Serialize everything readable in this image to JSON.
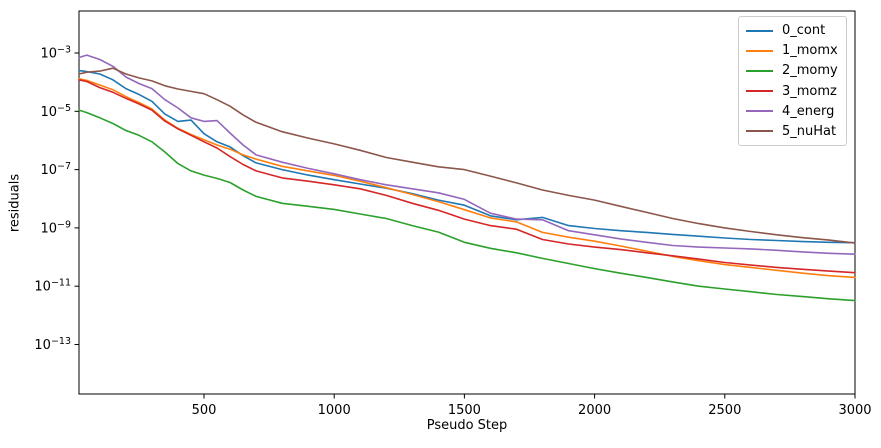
{
  "chart_data": {
    "type": "line",
    "title": "",
    "xlabel": "Pseudo Step",
    "ylabel": "residuals",
    "yscale": "log",
    "grid": false,
    "legend_position": "upper right",
    "xlim": [
      20,
      3000
    ],
    "ylim": [
      1e-15,
      0.025
    ],
    "x_ticks": [
      500,
      1000,
      1500,
      2000,
      2500,
      3000
    ],
    "y_tick_exponents": [
      -3,
      -5,
      -7,
      -9,
      -11,
      -13
    ],
    "x": [
      20,
      50,
      100,
      150,
      200,
      250,
      300,
      350,
      400,
      450,
      500,
      550,
      600,
      650,
      700,
      800,
      900,
      1000,
      1100,
      1200,
      1300,
      1400,
      1500,
      1600,
      1700,
      1800,
      1900,
      2000,
      2100,
      2200,
      2300,
      2400,
      2500,
      2600,
      2700,
      2800,
      2900,
      3000
    ],
    "series": [
      {
        "name": "0_cont",
        "color": "#1f77b4",
        "values": [
          0.00025,
          0.00023,
          0.00019,
          0.00012,
          6e-05,
          3.8e-05,
          2.2e-05,
          8e-06,
          4.5e-06,
          5e-06,
          1.7e-06,
          9e-07,
          6e-07,
          3e-07,
          1.7e-07,
          1e-07,
          6.5e-08,
          4.5e-08,
          3.2e-08,
          2.3e-08,
          1.5e-08,
          9e-09,
          6e-09,
          2.6e-09,
          1.9e-09,
          2.3e-09,
          1.2e-09,
          9.5e-10,
          8e-10,
          7e-10,
          6e-10,
          5.2e-10,
          4.5e-10,
          4e-10,
          3.7e-10,
          3.4e-10,
          3.2e-10,
          3.1e-10
        ]
      },
      {
        "name": "1_momx",
        "color": "#ff7f0e",
        "values": [
          0.00013,
          0.000115,
          8e-05,
          5.5e-05,
          3.2e-05,
          2e-05,
          1.2e-05,
          5e-06,
          2.6e-06,
          1.6e-06,
          1.05e-06,
          7e-07,
          5e-07,
          3.2e-07,
          2.3e-07,
          1.3e-07,
          9e-08,
          6.3e-08,
          4e-08,
          2.4e-08,
          1.4e-08,
          8e-09,
          4.2e-09,
          2.2e-09,
          1.6e-09,
          7e-10,
          4.8e-10,
          3.5e-10,
          2.4e-10,
          1.6e-10,
          1.05e-10,
          7.5e-11,
          5.5e-11,
          4.4e-11,
          3.5e-11,
          2.8e-11,
          2.3e-11,
          2e-11
        ]
      },
      {
        "name": "2_momy",
        "color": "#2ca02c",
        "values": [
          1.1e-05,
          9e-06,
          6e-06,
          3.8e-06,
          2.2e-06,
          1.5e-06,
          9e-07,
          4e-07,
          1.6e-07,
          9e-08,
          6.5e-08,
          5e-08,
          3.6e-08,
          2e-08,
          1.2e-08,
          7e-09,
          5.5e-09,
          4.3e-09,
          3e-09,
          2.1e-09,
          1.2e-09,
          7.2e-10,
          3.2e-10,
          2e-10,
          1.4e-10,
          9e-11,
          6e-11,
          4e-11,
          2.8e-11,
          2e-11,
          1.4e-11,
          1e-11,
          8e-12,
          6.5e-12,
          5.2e-12,
          4.4e-12,
          3.7e-12,
          3.2e-12
        ]
      },
      {
        "name": "3_momz",
        "color": "#d62728",
        "values": [
          0.00012,
          0.000105,
          6.5e-05,
          4.5e-05,
          2.8e-05,
          1.8e-05,
          1.1e-05,
          4.6e-06,
          2.5e-06,
          1.5e-06,
          9e-07,
          5.5e-07,
          2.8e-07,
          1.5e-07,
          9e-08,
          5.2e-08,
          4e-08,
          3e-08,
          2.2e-08,
          1.3e-08,
          7e-09,
          4e-09,
          2e-09,
          1.2e-09,
          9e-10,
          4e-10,
          2.8e-10,
          2.2e-10,
          1.8e-10,
          1.4e-10,
          1.1e-10,
          8.5e-11,
          6.5e-11,
          5.3e-11,
          4.4e-11,
          3.8e-11,
          3.3e-11,
          2.9e-11
        ]
      },
      {
        "name": "4_energ",
        "color": "#9467bd",
        "values": [
          0.0007,
          0.00085,
          0.0006,
          0.00035,
          0.00015,
          9e-05,
          6e-05,
          2.5e-05,
          1.3e-05,
          6e-06,
          4.5e-06,
          4.8e-06,
          1.8e-06,
          7e-07,
          3.2e-07,
          1.8e-07,
          1.1e-07,
          7.2e-08,
          4.5e-08,
          3e-08,
          2.2e-08,
          1.6e-08,
          9.5e-09,
          3.2e-09,
          2e-09,
          1.9e-09,
          8e-10,
          5.8e-10,
          4.2e-10,
          3.2e-10,
          2.5e-10,
          2.2e-10,
          2.05e-10,
          1.9e-10,
          1.7e-10,
          1.5e-10,
          1.35e-10,
          1.25e-10
        ]
      },
      {
        "name": "5_nuHat",
        "color": "#8c564b",
        "values": [
          0.00019,
          0.00022,
          0.00024,
          0.0003,
          0.00019,
          0.00014,
          0.00011,
          7.5e-05,
          5.8e-05,
          4.8e-05,
          4e-05,
          2.5e-05,
          1.5e-05,
          7.5e-06,
          4.2e-06,
          2e-06,
          1.2e-06,
          7.6e-07,
          4.6e-07,
          2.6e-07,
          1.8e-07,
          1.25e-07,
          1e-07,
          6e-08,
          3.5e-08,
          2e-08,
          1.3e-08,
          9e-09,
          5.5e-09,
          3.4e-09,
          2.1e-09,
          1.4e-09,
          1e-09,
          7.5e-10,
          5.8e-10,
          4.6e-10,
          3.8e-10,
          3e-10
        ]
      }
    ]
  }
}
